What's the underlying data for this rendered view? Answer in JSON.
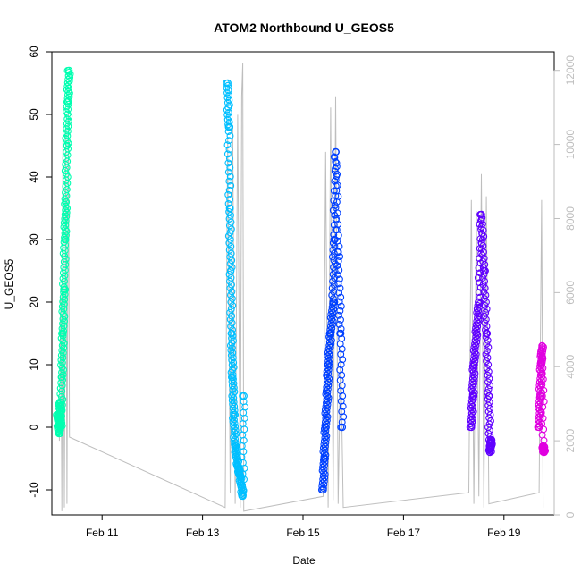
{
  "chart_data": {
    "type": "scatter",
    "title": "ATOM2 Northbound U_GEOS5",
    "xlabel": "Date",
    "ylabel": "U_GEOS5",
    "x_ticks": [
      {
        "day": 11,
        "label": "Feb 11"
      },
      {
        "day": 13,
        "label": "Feb 13"
      },
      {
        "day": 15,
        "label": "Feb 15"
      },
      {
        "day": 17,
        "label": "Feb 17"
      },
      {
        "day": 19,
        "label": "Feb 19"
      }
    ],
    "xlim": [
      "Feb 10 00:00",
      "Feb 20 00:00"
    ],
    "ylim": [
      -14,
      60
    ],
    "y_ticks": [
      -10,
      0,
      10,
      20,
      30,
      40,
      50,
      60
    ],
    "y2_label": "",
    "y2lim": [
      0,
      12500
    ],
    "y2_ticks": [
      0,
      2000,
      4000,
      6000,
      8000,
      10000,
      12000
    ],
    "background_series": {
      "name": "",
      "color": "#bebebe",
      "comment_units": "right axis",
      "points": [
        [
          10.15,
          2000
        ],
        [
          10.18,
          6000
        ],
        [
          10.2,
          100
        ],
        [
          10.22,
          10200
        ],
        [
          10.25,
          200
        ],
        [
          10.28,
          10500
        ],
        [
          10.3,
          300
        ],
        [
          10.33,
          11000
        ],
        [
          10.35,
          2100
        ],
        [
          13.45,
          200
        ],
        [
          13.5,
          10200
        ],
        [
          13.55,
          600
        ],
        [
          13.6,
          10500
        ],
        [
          13.65,
          300
        ],
        [
          13.7,
          10800
        ],
        [
          13.75,
          200
        ],
        [
          13.78,
          11300
        ],
        [
          13.8,
          12200
        ],
        [
          13.82,
          100
        ],
        [
          15.4,
          500
        ],
        [
          15.45,
          9800
        ],
        [
          15.5,
          200
        ],
        [
          15.55,
          11000
        ],
        [
          15.6,
          400
        ],
        [
          15.65,
          11300
        ],
        [
          15.7,
          300
        ],
        [
          15.75,
          4500
        ],
        [
          15.8,
          200
        ],
        [
          18.3,
          600
        ],
        [
          18.35,
          8500
        ],
        [
          18.4,
          300
        ],
        [
          18.45,
          8200
        ],
        [
          18.5,
          500
        ],
        [
          18.55,
          9200
        ],
        [
          18.6,
          200
        ],
        [
          18.65,
          8600
        ],
        [
          18.7,
          300
        ],
        [
          19.7,
          600
        ],
        [
          19.75,
          8500
        ],
        [
          19.78,
          200
        ]
      ]
    },
    "series": [
      {
        "name": "",
        "color": "#00ffb0",
        "x_range": [
          10.1,
          10.35
        ],
        "points": [
          [
            10.12,
            2
          ],
          [
            10.14,
            -1
          ],
          [
            10.16,
            4
          ],
          [
            10.18,
            0
          ],
          [
            10.2,
            8
          ],
          [
            10.22,
            15
          ],
          [
            10.24,
            22
          ],
          [
            10.26,
            30
          ],
          [
            10.28,
            36
          ],
          [
            10.3,
            45
          ],
          [
            10.32,
            52
          ],
          [
            10.34,
            57
          ]
        ]
      },
      {
        "name": "",
        "color": "#00bfff",
        "x_range": [
          13.5,
          13.85
        ],
        "points": [
          [
            13.5,
            55
          ],
          [
            13.52,
            48
          ],
          [
            13.54,
            35
          ],
          [
            13.56,
            25
          ],
          [
            13.58,
            15
          ],
          [
            13.6,
            8
          ],
          [
            13.62,
            2
          ],
          [
            13.65,
            -3
          ],
          [
            13.7,
            -6
          ],
          [
            13.75,
            -8
          ],
          [
            13.8,
            -11
          ],
          [
            13.82,
            5
          ]
        ]
      },
      {
        "name": "",
        "color": "#0040ff",
        "x_range": [
          15.4,
          15.8
        ],
        "points": [
          [
            15.4,
            -10
          ],
          [
            15.42,
            -5
          ],
          [
            15.45,
            0
          ],
          [
            15.48,
            5
          ],
          [
            15.5,
            10
          ],
          [
            15.55,
            15
          ],
          [
            15.6,
            20
          ],
          [
            15.62,
            30
          ],
          [
            15.65,
            44
          ],
          [
            15.7,
            28
          ],
          [
            15.75,
            15
          ],
          [
            15.78,
            0
          ]
        ]
      },
      {
        "name": "",
        "color": "#6000ff",
        "x_range": [
          18.35,
          18.75
        ],
        "points": [
          [
            18.35,
            0
          ],
          [
            18.38,
            5
          ],
          [
            18.4,
            10
          ],
          [
            18.45,
            15
          ],
          [
            18.5,
            20
          ],
          [
            18.55,
            34
          ],
          [
            18.6,
            25
          ],
          [
            18.65,
            15
          ],
          [
            18.7,
            5
          ],
          [
            18.72,
            -4
          ],
          [
            18.75,
            -2
          ]
        ]
      },
      {
        "name": "",
        "color": "#e000e0",
        "x_range": [
          19.7,
          19.8
        ],
        "points": [
          [
            19.7,
            0
          ],
          [
            19.72,
            5
          ],
          [
            19.74,
            10
          ],
          [
            19.76,
            13
          ],
          [
            19.78,
            -3
          ],
          [
            19.8,
            -4
          ]
        ]
      }
    ],
    "grid": false,
    "legend": "none"
  }
}
